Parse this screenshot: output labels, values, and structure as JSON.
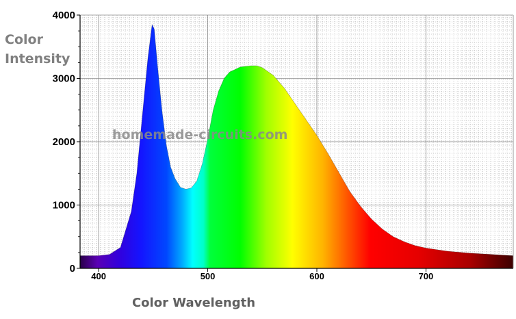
{
  "chart_data": {
    "type": "area",
    "title": "",
    "ylabel_lines": [
      "Color",
      "Intensity"
    ],
    "xlabel": "Color Wavelength",
    "watermark": "homemade-circuits.com",
    "xlim": [
      383,
      780
    ],
    "ylim": [
      0,
      4000
    ],
    "x_ticks": [
      400,
      500,
      600,
      700
    ],
    "x_tick_labels": [
      "400",
      "500",
      "600",
      "700"
    ],
    "y_ticks": [
      0,
      1000,
      2000,
      3000,
      4000
    ],
    "y_tick_labels": [
      "0",
      "1000",
      "2000",
      "3000",
      "4000"
    ],
    "grid": true,
    "fill": "visible spectrum colors",
    "series": [
      {
        "x": [
          383,
          400,
          410,
          420,
          430,
          435,
          440,
          445,
          449,
          451,
          454,
          458,
          462,
          466,
          470,
          475,
          480,
          485,
          490,
          495,
          500,
          505,
          510,
          515,
          520,
          530,
          540,
          545,
          550,
          560,
          570,
          580,
          590,
          600,
          610,
          620,
          630,
          640,
          650,
          660,
          670,
          680,
          690,
          700,
          720,
          740,
          760,
          780
        ],
        "y": [
          200,
          200,
          220,
          330,
          900,
          1500,
          2400,
          3300,
          3850,
          3780,
          3200,
          2500,
          1950,
          1600,
          1420,
          1280,
          1250,
          1270,
          1380,
          1650,
          2050,
          2500,
          2800,
          3000,
          3100,
          3180,
          3200,
          3200,
          3170,
          3050,
          2850,
          2600,
          2350,
          2100,
          1820,
          1520,
          1220,
          980,
          780,
          620,
          500,
          420,
          360,
          320,
          270,
          240,
          220,
          200
        ]
      }
    ]
  }
}
